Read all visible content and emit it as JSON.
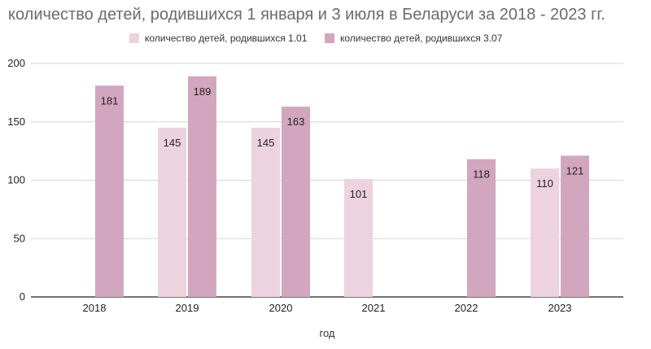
{
  "chart_data": {
    "type": "bar",
    "title": "количество детей, родившихся 1 января и 3 июля в Беларуси за 2018 - 2023 гг.",
    "xlabel": "год",
    "ylabel": "",
    "categories": [
      "2018",
      "2019",
      "2020",
      "2021",
      "2022",
      "2023"
    ],
    "series": [
      {
        "name": "количество детей, родившихся  1.01",
        "values": [
          null,
          145,
          145,
          101,
          null,
          110
        ],
        "color": "#ecd3de"
      },
      {
        "name": "количество детей, родившихся 3.07",
        "values": [
          181,
          189,
          163,
          null,
          118,
          121
        ],
        "color": "#d3a6bf"
      }
    ],
    "ylim": [
      0,
      200
    ],
    "yticks": [
      0,
      50,
      100,
      150,
      200
    ],
    "grid": true,
    "legend": "top-center"
  }
}
